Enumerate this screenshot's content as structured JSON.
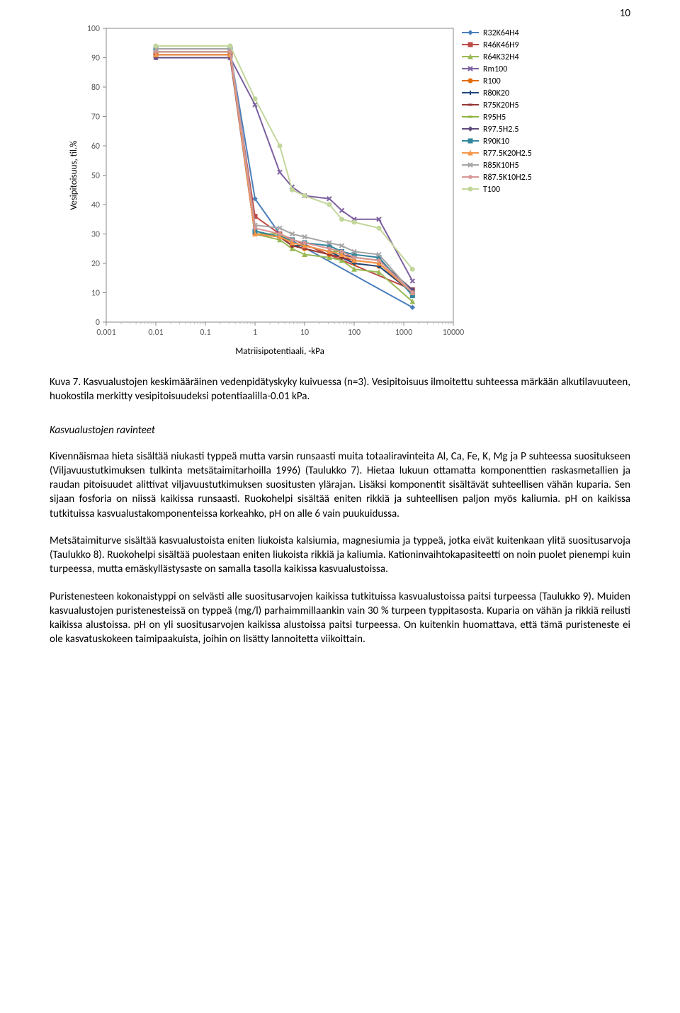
{
  "page_number": "10",
  "chart": {
    "type": "line",
    "ylabel": "Vesipitoisuus, til.%",
    "xlabel": "Matriisipotentiaali, -kPa",
    "x_scale": "log",
    "xlim": [
      0.001,
      10000
    ],
    "ylim": [
      0,
      100
    ],
    "xtick_labels": [
      "0.001",
      "0.01",
      "0.1",
      "1",
      "10",
      "100",
      "1000",
      "10000"
    ],
    "ytick_labels": [
      "0",
      "10",
      "20",
      "30",
      "40",
      "50",
      "60",
      "70",
      "80",
      "90",
      "100"
    ],
    "ytick_step": 10,
    "axis_font_size": 12,
    "label_font_size": 13,
    "plot_background": "#ffffff",
    "grid": false,
    "line_width": 2,
    "marker_size": 6,
    "x_data": [
      0.01,
      0.316,
      1,
      3.16,
      5.62,
      10,
      31.6,
      56.2,
      100,
      316,
      1500
    ],
    "legend_position": "top-right",
    "series": [
      {
        "name": "R32K64H4",
        "color": "#4a7ebb",
        "marker": "diamond",
        "y": [
          92,
          92,
          42,
          30,
          null,
          null,
          null,
          null,
          null,
          null,
          5
        ]
      },
      {
        "name": "R46K46H9",
        "color": "#be4b48",
        "marker": "square",
        "y": [
          91,
          91,
          36,
          30,
          null,
          null,
          null,
          null,
          null,
          null,
          11
        ]
      },
      {
        "name": "R64K32H4",
        "color": "#98b954",
        "marker": "triangle",
        "y": [
          91,
          91,
          30,
          28,
          25,
          23,
          22,
          21,
          18,
          17,
          7
        ]
      },
      {
        "name": "Rm100",
        "color": "#7d60a0",
        "marker": "x",
        "y": [
          90,
          90,
          74,
          51,
          46,
          43,
          42,
          38,
          35,
          35,
          14
        ]
      },
      {
        "name": "R100",
        "color": "#e46c0a",
        "marker": "circle",
        "y": [
          91,
          91,
          30,
          29,
          26,
          25,
          23,
          22,
          20,
          19,
          10
        ]
      },
      {
        "name": "R80K20",
        "color": "#1f497d",
        "marker": "plus",
        "y": [
          91,
          91,
          31,
          29,
          26,
          26,
          24,
          22,
          20,
          19,
          10
        ]
      },
      {
        "name": "R75K20H5",
        "color": "#953735",
        "marker": "dash",
        "y": [
          91,
          91,
          30,
          29,
          26,
          25,
          23,
          22,
          21,
          20,
          10
        ]
      },
      {
        "name": "R95H5",
        "color": "#8eb33b",
        "marker": "dash",
        "y": [
          92,
          92,
          30,
          30,
          27,
          26,
          24,
          24,
          22,
          21,
          11
        ]
      },
      {
        "name": "R97.5H2.5",
        "color": "#604a7b",
        "marker": "diamond",
        "y": [
          90,
          90,
          30,
          29,
          27,
          26,
          24,
          23,
          22,
          21,
          11
        ]
      },
      {
        "name": "R90K10",
        "color": "#31859c",
        "marker": "square",
        "y": [
          93,
          93,
          31,
          29,
          28,
          27,
          26,
          24,
          23,
          22,
          9
        ]
      },
      {
        "name": "R77.5K20H2.5",
        "color": "#f79646",
        "marker": "triangle",
        "y": [
          91,
          91,
          30,
          29,
          27,
          26,
          24,
          23,
          21,
          20,
          10
        ]
      },
      {
        "name": "R85K10H5",
        "color": "#a6a6a6",
        "marker": "x",
        "y": [
          93,
          93,
          33,
          32,
          30,
          29,
          27,
          26,
          24,
          23,
          10
        ]
      },
      {
        "name": "R87.5K10H2.5",
        "color": "#d99694",
        "marker": "star",
        "y": [
          92,
          92,
          32,
          30,
          28,
          27,
          25,
          24,
          22,
          21,
          10
        ]
      },
      {
        "name": "T100",
        "color": "#c3d69b",
        "marker": "circle",
        "y": [
          94,
          94,
          76,
          60,
          45,
          43,
          40,
          35,
          34,
          32,
          18
        ]
      }
    ]
  },
  "caption_label": "Kuva 7.",
  "caption_text": " Kasvualustojen keskimääräinen vedenpidätyskyky kuivuessa (n=3). Vesipitoisuus ilmoitettu suhteessa märkään alkutilavuuteen, huokostila merkitty vesipitoisuudeksi potentiaalilla-0.01 kPa.",
  "section_heading": "Kasvualustojen ravinteet",
  "paragraphs": [
    "Kivennäismaa hieta sisältää niukasti typpeä mutta varsin runsaasti muita totaaliravinteita Al, Ca, Fe, K, Mg ja P suhteessa suositukseen (Viljavuustutkimuksen tulkinta metsätaimitarhoilla 1996) (Taulukko 7). Hietaa lukuun ottamatta komponenttien raskasmetallien ja raudan pitoisuudet alittivat viljavuustutkimuksen suositusten ylärajan. Lisäksi komponentit sisältävät suhteellisen vähän kuparia. Sen sijaan fosforia on niissä kaikissa runsaasti. Ruokohelpi sisältää eniten rikkiä ja suhteellisen paljon myös kaliumia. pH on kaikissa tutkituissa kasvualustakomponenteissa korkeahko, pH on alle 6 vain puukuidussa.",
    "Metsätaimiturve sisältää kasvualustoista eniten liukoista kalsiumia, magnesiumia ja typpeä, jotka eivät kuitenkaan ylitä suositusarvoja (Taulukko 8). Ruokohelpi sisältää puolestaan eniten liukoista rikkiä ja kaliumia. Kationinvaihtokapasiteetti on noin puolet pienempi kuin turpeessa, mutta emäskyllästysaste on samalla tasolla kaikissa kasvualustoissa.",
    "Puristenesteen kokonaistyppi on selvästi alle suositusarvojen kaikissa tutkituissa kasvualustoissa paitsi turpeessa (Taulukko 9). Muiden kasvualustojen puristenesteissä on typpeä (mg/l) parhaimmillaankin vain 30 % turpeen typpitasosta. Kuparia on vähän ja rikkiä reilusti kaikissa alustoissa. pH on yli suositusarvojen kaikissa alustoissa paitsi turpeessa. On kuitenkin huomattava, että tämä puristeneste ei ole kasvatuskokeen taimipaakuista, joihin on lisätty lannoitetta viikoittain."
  ]
}
